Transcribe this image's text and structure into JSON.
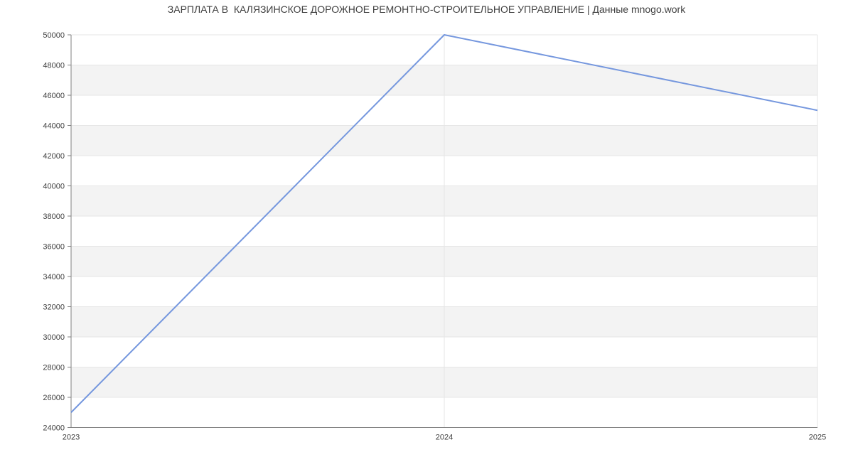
{
  "chart_data": {
    "type": "line",
    "title": "ЗАРПЛАТА В  КАЛЯЗИНСКОЕ ДОРОЖНОЕ РЕМОНТНО-СТРОИТЕЛЬНОЕ УПРАВЛЕНИЕ | Данные mnogo.work",
    "categories": [
      "2023",
      "2024",
      "2025"
    ],
    "values": [
      25000,
      50000,
      45000
    ],
    "ytick_labels": [
      "24000",
      "26000",
      "28000",
      "30000",
      "32000",
      "34000",
      "36000",
      "38000",
      "40000",
      "42000",
      "44000",
      "46000",
      "48000",
      "50000"
    ],
    "xlabel": "",
    "ylabel": "",
    "ylim": [
      24000,
      50000
    ],
    "ytick_step": 2000,
    "grid": true,
    "legend": "none",
    "band_fill": "alternating horizontal stripes per 2000 units, white at top",
    "colors": {
      "line": "#7597de",
      "band": "#f3f3f3",
      "grid": "#e6e6e6",
      "axis": "#808080",
      "text": "#404040",
      "background": "#ffffff"
    }
  }
}
